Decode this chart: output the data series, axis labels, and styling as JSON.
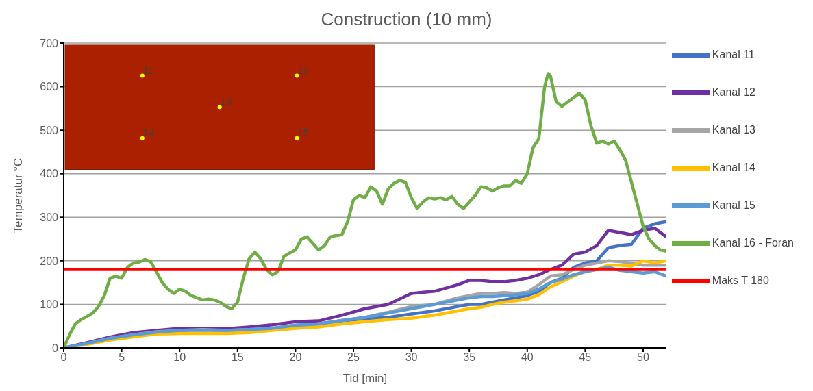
{
  "chart_data": {
    "type": "line",
    "title": "Construction (10 mm)",
    "xlabel": "Tid [min]",
    "ylabel": "Temperatur °C",
    "xlim": [
      0,
      52
    ],
    "xticks": [
      0,
      5,
      10,
      15,
      20,
      25,
      30,
      35,
      40,
      45,
      50
    ],
    "ylim": [
      0,
      700
    ],
    "yticks": [
      0,
      100,
      200,
      300,
      400,
      500,
      600,
      700
    ],
    "grid": "y",
    "legend": "right",
    "marker": "none",
    "line_style": "solid",
    "annotations": [
      "11",
      "12",
      "13",
      "14",
      "15"
    ],
    "series": [
      {
        "name": "Kanal 11",
        "color": "#4472c4",
        "x": [
          0,
          2,
          4,
          6,
          8,
          10,
          12,
          14,
          16,
          18,
          20,
          22,
          24,
          26,
          28,
          30,
          32,
          34,
          35,
          36,
          37,
          38,
          39,
          40,
          41,
          42,
          43,
          44,
          45,
          46,
          47,
          48,
          49,
          50,
          51,
          52
        ],
        "values": [
          0,
          10,
          20,
          28,
          35,
          40,
          42,
          40,
          42,
          45,
          52,
          55,
          62,
          67,
          70,
          78,
          85,
          95,
          100,
          100,
          105,
          110,
          115,
          120,
          130,
          150,
          160,
          185,
          195,
          200,
          230,
          235,
          238,
          275,
          285,
          290
        ]
      },
      {
        "name": "Kanal 12",
        "color": "#7030a0",
        "x": [
          0,
          2,
          4,
          6,
          8,
          10,
          12,
          14,
          16,
          18,
          20,
          22,
          24,
          26,
          28,
          30,
          32,
          34,
          35,
          36,
          37,
          38,
          39,
          40,
          41,
          42,
          43,
          44,
          45,
          46,
          47,
          48,
          49,
          50,
          51,
          52
        ],
        "values": [
          0,
          12,
          25,
          35,
          40,
          45,
          45,
          44,
          48,
          53,
          60,
          62,
          75,
          90,
          100,
          125,
          130,
          145,
          155,
          155,
          152,
          152,
          155,
          160,
          168,
          180,
          190,
          215,
          220,
          235,
          270,
          265,
          260,
          270,
          275,
          255
        ]
      },
      {
        "name": "Kanal 13",
        "color": "#a5a5a5",
        "x": [
          0,
          2,
          4,
          6,
          8,
          10,
          12,
          14,
          16,
          18,
          20,
          22,
          24,
          26,
          28,
          30,
          32,
          34,
          35,
          36,
          37,
          38,
          39,
          40,
          41,
          42,
          43,
          44,
          45,
          46,
          47,
          48,
          49,
          50,
          51,
          52
        ],
        "values": [
          0,
          10,
          22,
          30,
          37,
          40,
          42,
          40,
          42,
          45,
          52,
          55,
          63,
          70,
          82,
          95,
          100,
          115,
          120,
          125,
          125,
          127,
          125,
          128,
          145,
          165,
          168,
          180,
          190,
          195,
          200,
          198,
          195,
          190,
          190,
          190
        ]
      },
      {
        "name": "Kanal 14",
        "color": "#ffc000",
        "x": [
          0,
          2,
          4,
          6,
          8,
          10,
          12,
          14,
          16,
          18,
          20,
          22,
          24,
          26,
          28,
          30,
          32,
          34,
          35,
          36,
          37,
          38,
          39,
          40,
          41,
          42,
          43,
          44,
          45,
          46,
          47,
          48,
          49,
          50,
          51,
          52
        ],
        "values": [
          0,
          8,
          18,
          25,
          32,
          33,
          33,
          33,
          35,
          40,
          45,
          48,
          55,
          60,
          65,
          68,
          75,
          85,
          90,
          93,
          100,
          105,
          108,
          112,
          122,
          140,
          152,
          165,
          175,
          180,
          190,
          190,
          188,
          200,
          195,
          200
        ]
      },
      {
        "name": "Kanal 15",
        "color": "#5b9bd5",
        "x": [
          0,
          2,
          4,
          6,
          8,
          10,
          12,
          14,
          16,
          18,
          20,
          22,
          24,
          26,
          28,
          30,
          32,
          34,
          35,
          36,
          37,
          38,
          39,
          40,
          41,
          42,
          43,
          44,
          45,
          46,
          47,
          48,
          49,
          50,
          51,
          52
        ],
        "values": [
          0,
          10,
          22,
          30,
          36,
          40,
          40,
          40,
          42,
          45,
          52,
          55,
          63,
          70,
          80,
          90,
          100,
          110,
          115,
          118,
          118,
          120,
          122,
          125,
          135,
          150,
          158,
          168,
          175,
          180,
          185,
          178,
          175,
          172,
          175,
          165
        ]
      },
      {
        "name": "Kanal 16 - Foran",
        "color": "#70ad47",
        "x": [
          0,
          0.5,
          1,
          1.5,
          2,
          2.5,
          3,
          3.5,
          4,
          4.5,
          5,
          5.5,
          6,
          6.5,
          7,
          7.5,
          8,
          8.5,
          9,
          9.5,
          10,
          10.5,
          11,
          11.5,
          12,
          12.5,
          13,
          13.5,
          14,
          14.5,
          15,
          15.5,
          16,
          16.5,
          17,
          17.5,
          18,
          18.5,
          19,
          19.5,
          20,
          20.5,
          21,
          21.5,
          22,
          22.5,
          23,
          23.5,
          24,
          24.5,
          25,
          25.5,
          26,
          26.5,
          27,
          27.5,
          28,
          28.5,
          29,
          29.5,
          30,
          30.5,
          31,
          31.5,
          32,
          32.5,
          33,
          33.5,
          34,
          34.5,
          35,
          35.5,
          36,
          36.5,
          37,
          37.5,
          38,
          38.5,
          39,
          39.5,
          40,
          40.5,
          41,
          41.5,
          41.8,
          42,
          42.5,
          43,
          43.5,
          44,
          44.5,
          45,
          45.5,
          46,
          46.5,
          47,
          47.5,
          48,
          48.5,
          49,
          49.5,
          50,
          50.5,
          51,
          51.5,
          52
        ],
        "values": [
          0,
          30,
          55,
          65,
          72,
          80,
          95,
          120,
          160,
          165,
          160,
          185,
          195,
          197,
          203,
          198,
          175,
          150,
          135,
          125,
          135,
          130,
          120,
          115,
          110,
          112,
          110,
          105,
          95,
          90,
          105,
          160,
          205,
          220,
          205,
          180,
          168,
          175,
          210,
          218,
          225,
          250,
          255,
          240,
          225,
          235,
          255,
          258,
          260,
          290,
          340,
          350,
          345,
          370,
          360,
          330,
          365,
          378,
          385,
          380,
          345,
          320,
          335,
          345,
          342,
          345,
          340,
          348,
          330,
          320,
          335,
          350,
          370,
          368,
          360,
          368,
          372,
          372,
          385,
          378,
          400,
          460,
          480,
          600,
          630,
          625,
          565,
          555,
          565,
          575,
          585,
          570,
          510,
          470,
          475,
          468,
          475,
          455,
          430,
          380,
          330,
          280,
          250,
          235,
          225,
          222
        ]
      },
      {
        "name": "Maks T 180",
        "color": "#ff0000",
        "x": [
          0,
          52
        ],
        "values": [
          180,
          180
        ]
      }
    ]
  }
}
